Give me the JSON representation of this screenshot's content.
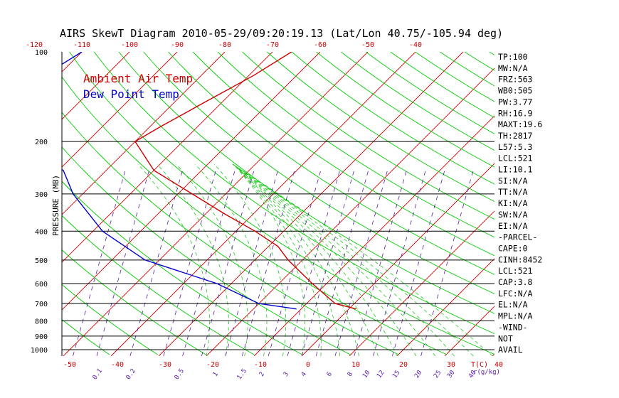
{
  "chart_data": {
    "type": "line",
    "title": "AIRS SkewT Diagram 2010-05-29/09:20:19.13 (Lat/Lon 40.75/-105.94 deg)",
    "ylabel": "PRESSURE (MB)",
    "y_scale": "log",
    "y_reversed": true,
    "ylim": [
      1050,
      100
    ],
    "pressure_ticks": [
      100,
      200,
      300,
      400,
      500,
      600,
      700,
      800,
      900,
      1000
    ],
    "top_temp_ticks": [
      -120,
      -110,
      -100,
      -90,
      -80,
      -70,
      -60,
      -50,
      -40
    ],
    "bottom_temp_ticks": [
      -50,
      -40,
      -30,
      -20,
      -10,
      0,
      10,
      20,
      30,
      40
    ],
    "bottom_temp_unit": "T(C)",
    "mixing_ratio_ticks": [
      "0.1",
      "0.2",
      "0.5",
      "1",
      "1.5",
      "2",
      "3",
      "4",
      "6",
      "8",
      "10",
      "12",
      "15",
      "20",
      "25",
      "30",
      "40"
    ],
    "mixing_ratio_unit": "r(g/kg)",
    "legend_position": "top-left",
    "series": [
      {
        "name": "Ambient Air Temp",
        "color": "#cc0000",
        "points": [
          {
            "p": 100,
            "t": -66
          },
          {
            "p": 120,
            "t": -69
          },
          {
            "p": 150,
            "t": -74
          },
          {
            "p": 180,
            "t": -78
          },
          {
            "p": 200,
            "t": -80
          },
          {
            "p": 250,
            "t": -70
          },
          {
            "p": 300,
            "t": -57
          },
          {
            "p": 350,
            "t": -46
          },
          {
            "p": 400,
            "t": -36
          },
          {
            "p": 450,
            "t": -28
          },
          {
            "p": 500,
            "t": -23
          },
          {
            "p": 600,
            "t": -13
          },
          {
            "p": 700,
            "t": -4
          },
          {
            "p": 730,
            "t": 1.5
          }
        ]
      },
      {
        "name": "Dew Point Temp",
        "color": "#0000cc",
        "points": [
          {
            "p": 100,
            "t": -110
          },
          {
            "p": 120,
            "t": -113
          },
          {
            "p": 150,
            "t": -119
          },
          {
            "p": 180,
            "t": -111
          },
          {
            "p": 200,
            "t": -106
          },
          {
            "p": 250,
            "t": -89
          },
          {
            "p": 300,
            "t": -82
          },
          {
            "p": 400,
            "t": -68
          },
          {
            "p": 500,
            "t": -53
          },
          {
            "p": 600,
            "t": -33
          },
          {
            "p": 700,
            "t": -20
          },
          {
            "p": 730,
            "t": -11
          }
        ]
      }
    ]
  },
  "stats": [
    "TP:100",
    "MW:N/A",
    "FRZ:563",
    "WB0:505",
    "PW:3.77",
    "RH:16.9",
    "MAXT:19.6",
    "TH:2817",
    "L57:5.3",
    "LCL:521",
    "LI:10.1",
    "SI:N/A",
    "TT:N/A",
    "KI:N/A",
    "SW:N/A",
    "EI:N/A",
    "-PARCEL-",
    "CAPE:0",
    "CINH:8452",
    "LCL:521",
    "CAP:3.8",
    "LFC:N/A",
    "EL:N/A",
    "MPL:N/A",
    "-WIND-",
    "NOT",
    "AVAIL"
  ],
  "colors": {
    "isotherm": "#cc0000",
    "dry_adiabat": "#00cc00",
    "moist_adiabat": "#22cc22",
    "mixing_ratio": "#5a1aa8",
    "axis": "#000000"
  }
}
